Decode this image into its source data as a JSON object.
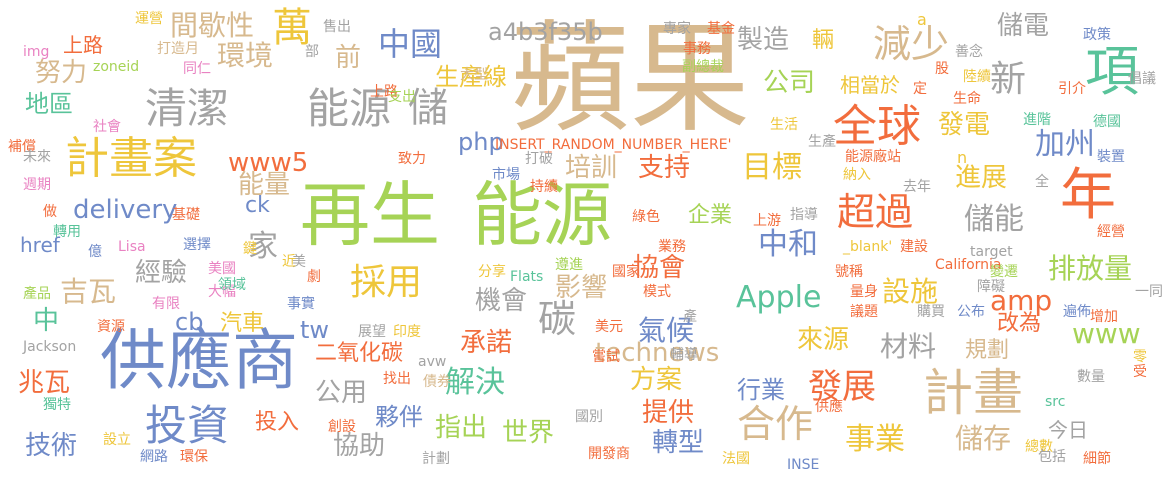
{
  "colors": {
    "tan": "#d7b98e",
    "green": "#a6d356",
    "orange": "#f26d3d",
    "blue": "#6f8ac8",
    "gray": "#a3a3a3",
    "yellow": "#eec63b",
    "teal": "#59c39a",
    "pink": "#e982c2"
  },
  "words": [
    "蘋果",
    "再生",
    "能源",
    "供應商",
    "全球",
    "清潔",
    "能源",
    "計畫案",
    "計畫",
    "投資",
    "項",
    "年",
    "減少",
    "儲",
    "萬",
    "中國",
    "間歇性",
    "環境",
    "努力",
    "地區",
    "公司",
    "目標",
    "超過",
    "儲能",
    "新",
    "加州",
    "發展",
    "中和",
    "Apple",
    "設施",
    "排放量",
    "採用",
    "碳",
    "合作",
    "事業",
    "儲存",
    "技術",
    "兆瓦",
    "吉瓦",
    "經驗",
    "家",
    "delivery",
    "www5",
    "能量",
    "前",
    "php",
    "培訓",
    "支持",
    "進展",
    "發電",
    "製造",
    "儲電",
    "相當於",
    "輛",
    "生產線",
    "a4b3f35b",
    "technews",
    "解決",
    "承諾",
    "方案",
    "行業",
    "提供",
    "轉型",
    "指出",
    "世界",
    "協助",
    "夥伴",
    "公用",
    "材料",
    "規劃",
    "來源",
    "改為",
    "www",
    "今日",
    "amp",
    "氣候",
    "影響",
    "機會",
    "協會",
    "企業",
    "tw",
    "cb",
    "汽車",
    "二氧化碳",
    "投入",
    "ck",
    "href",
    "中",
    "上路",
    "運營",
    "售出",
    "專家",
    "基金",
    "政策",
    "img",
    "zoneid",
    "社會",
    "補償",
    "未來",
    "週期",
    "做",
    "轉用",
    "億",
    "產品",
    "資源",
    "Jackson",
    "獨特",
    "設立",
    "網路",
    "環保",
    "計劃",
    "開發商",
    "法國",
    "INSE",
    "總數",
    "包括",
    "細節",
    "src",
    "數量",
    "受",
    "零",
    "一同",
    "增加",
    "遍佈",
    "經營",
    "裝置",
    "德國",
    "倡議",
    "引介",
    "進階",
    "生命",
    "陸續",
    "善念",
    "股",
    "定",
    "a",
    "n",
    "副總裁",
    "事務",
    "打造月",
    "同仁",
    "部",
    "上路",
    "支出",
    "大型",
    "INSERT_RANDOM_NUMBER_HERE'",
    "致力",
    "打破",
    "持續",
    "市場",
    "生活",
    "能源廠站",
    "納入",
    "去年",
    "全",
    "綠色",
    "上游",
    "指導",
    "_blank'",
    "建設",
    "target",
    "業務",
    "國家",
    "模式",
    "Flats",
    "遵進",
    "分享",
    "California",
    "號稱",
    "量身",
    "變遷",
    "議題",
    "購買",
    "公布",
    "障礙",
    "美元",
    "展望",
    "印度",
    "找出",
    "avw",
    "債券",
    "嘗試",
    "輔導",
    "國別",
    "創設",
    "事實",
    "劇",
    "有限",
    "大幅",
    "美國",
    "領域",
    "選擇",
    "鍵",
    "基礎",
    "Lisa",
    "美",
    "近",
    "供應",
    "產",
    "生產"
  ]
}
